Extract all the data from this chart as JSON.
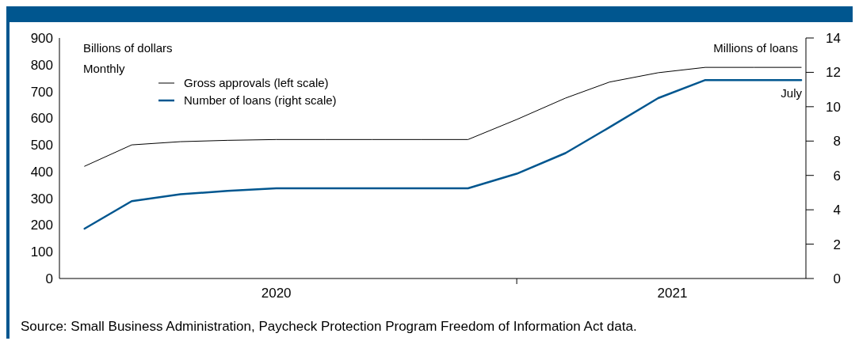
{
  "chart_data": {
    "type": "line",
    "ylabel": "Billions of dollars",
    "y2label": "Millions of loans",
    "x": [
      "2020-04",
      "2020-05",
      "2020-06",
      "2020-07",
      "2020-08",
      "2020-09",
      "2020-10",
      "2020-11",
      "2020-12",
      "2021-01",
      "2021-02",
      "2021-03",
      "2021-04",
      "2021-05",
      "2021-06",
      "2021-07"
    ],
    "series": [
      {
        "name": "Gross approvals (left scale)",
        "color": "#000000",
        "values": [
          420,
          500,
          512,
          517,
          520,
          520,
          520,
          520,
          520,
          595,
          675,
          735,
          770,
          790,
          790,
          790
        ]
      },
      {
        "name": "Number of loans (right scale)",
        "color": "#00568f",
        "axis": "y2",
        "values": [
          2.9,
          4.5,
          4.9,
          5.1,
          5.25,
          5.25,
          5.25,
          5.25,
          5.25,
          6.1,
          7.3,
          8.8,
          10.5,
          11.55,
          11.55,
          11.55
        ]
      }
    ],
    "xlim": [
      "2020-03-16",
      "2021-07-04"
    ],
    "xticks": [
      {
        "value": "2020-08",
        "label": "2020"
      },
      {
        "value": "2021-01",
        "label": null
      },
      {
        "value": "2021-04-10",
        "label": "2021"
      }
    ],
    "ylim": [
      0,
      900
    ],
    "yticks": [
      0,
      100,
      200,
      300,
      400,
      500,
      600,
      700,
      800,
      900
    ],
    "y2lim": [
      0,
      14
    ],
    "y2ticks": [
      0,
      2,
      4,
      6,
      8,
      10,
      12,
      14
    ],
    "legend": "top left",
    "annotations": [
      "Monthly",
      "July",
      "Source: Small Business Administration, Paycheck Protection Program Freedom of Information Act data."
    ]
  }
}
